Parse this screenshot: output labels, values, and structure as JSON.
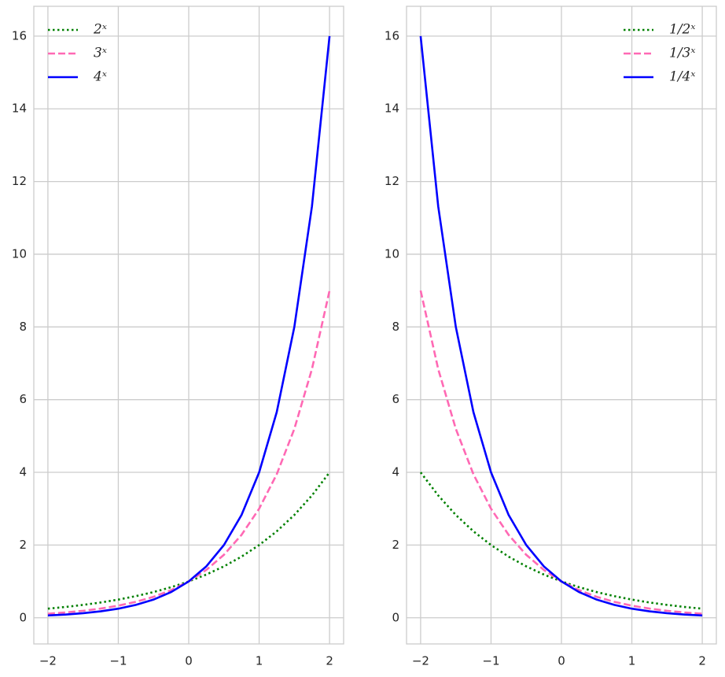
{
  "chart_data": [
    {
      "type": "line",
      "legend": "upper left",
      "grid": true,
      "x": [
        -2,
        -1.75,
        -1.5,
        -1.25,
        -1,
        -0.75,
        -0.5,
        -0.25,
        0,
        0.25,
        0.5,
        0.75,
        1,
        1.25,
        1.5,
        1.75,
        2
      ],
      "series": [
        {
          "name": "2ˣ",
          "color": "#008000",
          "style": "dotted",
          "values": [
            0.25,
            0.297,
            0.354,
            0.42,
            0.5,
            0.595,
            0.707,
            0.841,
            1,
            1.189,
            1.414,
            1.682,
            2,
            2.378,
            2.828,
            3.364,
            4
          ]
        },
        {
          "name": "3ˣ",
          "color": "#ff69b4",
          "style": "dashed",
          "values": [
            0.111,
            0.146,
            0.192,
            0.253,
            0.333,
            0.439,
            0.577,
            0.76,
            1,
            1.316,
            1.732,
            2.28,
            3,
            3.948,
            5.196,
            6.839,
            9
          ]
        },
        {
          "name": "4ˣ",
          "color": "#0000ff",
          "style": "solid",
          "values": [
            0.0625,
            0.088,
            0.125,
            0.177,
            0.25,
            0.354,
            0.5,
            0.707,
            1,
            1.414,
            2,
            2.828,
            4,
            5.657,
            8,
            11.314,
            16
          ]
        }
      ],
      "xlim": [
        -2.2,
        2.2
      ],
      "ylim": [
        -0.72,
        16.82
      ],
      "xticks": [
        {
          "value": -2,
          "label": "−2"
        },
        {
          "value": -1,
          "label": "−1"
        },
        0,
        1,
        2
      ],
      "yticks": [
        0,
        2,
        4,
        6,
        8,
        10,
        12,
        14,
        16
      ]
    },
    {
      "type": "line",
      "legend": "upper right",
      "grid": true,
      "x": [
        -2,
        -1.75,
        -1.5,
        -1.25,
        -1,
        -0.75,
        -0.5,
        -0.25,
        0,
        0.25,
        0.5,
        0.75,
        1,
        1.25,
        1.5,
        1.75,
        2
      ],
      "series": [
        {
          "name": "1/2ˣ",
          "color": "#008000",
          "style": "dotted",
          "values": [
            4,
            3.364,
            2.828,
            2.378,
            2,
            1.682,
            1.414,
            1.189,
            1,
            0.841,
            0.707,
            0.595,
            0.5,
            0.42,
            0.354,
            0.297,
            0.25
          ]
        },
        {
          "name": "1/3ˣ",
          "color": "#ff69b4",
          "style": "dashed",
          "values": [
            9,
            6.839,
            5.196,
            3.948,
            3,
            2.28,
            1.732,
            1.316,
            1,
            0.76,
            0.577,
            0.439,
            0.333,
            0.253,
            0.192,
            0.146,
            0.111
          ]
        },
        {
          "name": "1/4ˣ",
          "color": "#0000ff",
          "style": "solid",
          "values": [
            16,
            11.314,
            8,
            5.657,
            4,
            2.828,
            2,
            1.414,
            1,
            0.707,
            0.5,
            0.354,
            0.25,
            0.177,
            0.125,
            0.088,
            0.0625
          ]
        }
      ],
      "xlim": [
        -2.2,
        2.2
      ],
      "ylim": [
        -0.72,
        16.82
      ],
      "xticks": [
        {
          "value": -2,
          "label": "−2"
        },
        {
          "value": -1,
          "label": "−1"
        },
        0,
        1,
        2
      ],
      "yticks": [
        0,
        2,
        4,
        6,
        8,
        10,
        12,
        14,
        16
      ]
    }
  ]
}
